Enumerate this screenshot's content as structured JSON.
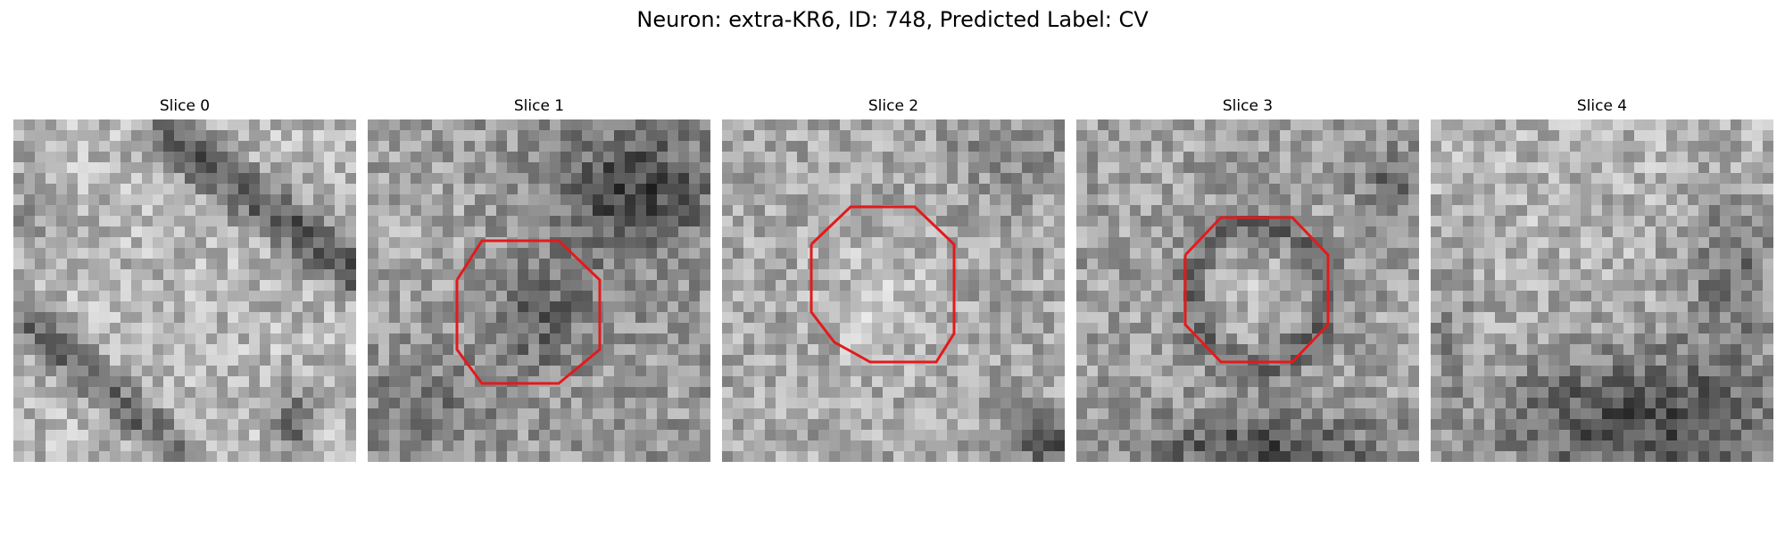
{
  "figure": {
    "title": "Neuron: extra-KR6, ID: 748, Predicted Label: CV"
  },
  "slices": [
    {
      "title": "Slice 0",
      "roi": false
    },
    {
      "title": "Slice 1",
      "roi": true
    },
    {
      "title": "Slice 2",
      "roi": true
    },
    {
      "title": "Slice 3",
      "roi": true
    },
    {
      "title": "Slice 4",
      "roi": false
    }
  ],
  "colors": {
    "roi_outline": "#e31a1c",
    "colormap": "grayscale"
  }
}
